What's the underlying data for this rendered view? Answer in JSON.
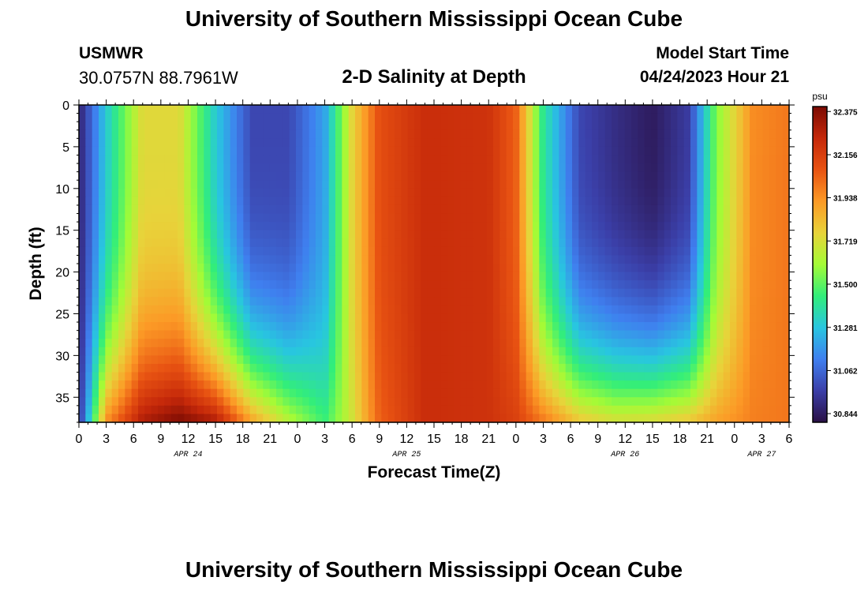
{
  "titles": {
    "top": "University of Southern Mississippi Ocean Cube",
    "bottom": "University of Southern Mississippi Ocean Cube"
  },
  "header": {
    "station": "USMWR",
    "coords": "30.0757N  88.7961W",
    "plot_title": "2-D Salinity at Depth",
    "start_label": "Model Start Time",
    "start_value": "04/24/2023 Hour 21"
  },
  "chart_data": {
    "type": "heatmap",
    "title": "2-D Salinity at Depth",
    "xlabel": "Forecast Time(Z)",
    "ylabel": "Depth (ft)",
    "x_ticks": [
      "0",
      "3",
      "6",
      "9",
      "12",
      "15",
      "18",
      "21",
      "0",
      "3",
      "6",
      "9",
      "12",
      "15",
      "18",
      "21",
      "0",
      "3",
      "6",
      "9",
      "12",
      "15",
      "18",
      "21",
      "0",
      "3",
      "6"
    ],
    "x_hours_range": [
      0,
      78
    ],
    "date_labels": [
      {
        "label": "APR 24",
        "hour": 12
      },
      {
        "label": "APR 25",
        "hour": 36
      },
      {
        "label": "APR 26",
        "hour": 60
      },
      {
        "label": "APR 27",
        "hour": 75
      }
    ],
    "y_ticks": [
      0,
      5,
      10,
      15,
      20,
      25,
      30,
      35
    ],
    "ylim": [
      0,
      38
    ],
    "y_inverted": true,
    "colorbar": {
      "unit": "psu",
      "labels": [
        "32.375",
        "32.156",
        "31.938",
        "31.719",
        "31.500",
        "31.281",
        "31.062",
        "30.844"
      ],
      "range": [
        30.8,
        32.4
      ],
      "colors": [
        "#2a1045",
        "#3b3fa8",
        "#3f7fef",
        "#28c6e0",
        "#32ee7a",
        "#a4fb36",
        "#e8d33a",
        "#fc9a26",
        "#e85312",
        "#c5280a",
        "#7b0b03"
      ]
    },
    "salinity_keyframes": [
      {
        "hour": 0,
        "surface": 30.86,
        "deep": 30.9
      },
      {
        "hour": 3,
        "surface": 31.3,
        "deep": 31.95
      },
      {
        "hour": 7,
        "surface": 31.74,
        "deep": 32.3
      },
      {
        "hour": 11,
        "surface": 31.74,
        "deep": 32.4
      },
      {
        "hour": 15,
        "surface": 31.3,
        "deep": 32.3
      },
      {
        "hour": 19,
        "surface": 30.98,
        "deep": 31.9
      },
      {
        "hour": 23,
        "surface": 30.98,
        "deep": 31.65
      },
      {
        "hour": 27,
        "surface": 31.2,
        "deep": 31.45
      },
      {
        "hour": 30,
        "surface": 31.75,
        "deep": 31.7
      },
      {
        "hour": 33,
        "surface": 32.1,
        "deep": 32.05
      },
      {
        "hour": 38,
        "surface": 32.22,
        "deep": 32.22
      },
      {
        "hour": 45,
        "surface": 32.2,
        "deep": 32.2
      },
      {
        "hour": 48,
        "surface": 32.05,
        "deep": 32.15
      },
      {
        "hour": 51,
        "surface": 31.4,
        "deep": 32.0
      },
      {
        "hour": 55,
        "surface": 30.98,
        "deep": 31.8
      },
      {
        "hour": 59,
        "surface": 30.9,
        "deep": 31.72
      },
      {
        "hour": 63,
        "surface": 30.84,
        "deep": 31.74
      },
      {
        "hour": 67,
        "surface": 30.95,
        "deep": 31.8
      },
      {
        "hour": 70,
        "surface": 31.55,
        "deep": 31.9
      },
      {
        "hour": 74,
        "surface": 31.95,
        "deep": 31.98
      },
      {
        "hour": 78,
        "surface": 32.0,
        "deep": 32.0
      }
    ]
  }
}
